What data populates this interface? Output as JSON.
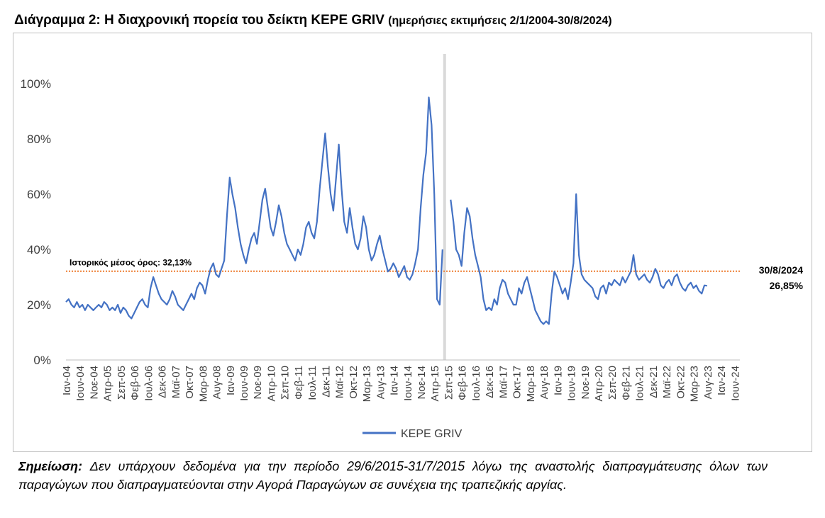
{
  "title": {
    "main": "Διάγραμμα 2: Η διαχρονική πορεία του δείκτη ΚΕΡΕ GRIV",
    "sub": "(ημερήσιες εκτιμήσεις 2/1/2004-30/8/2024)"
  },
  "note": {
    "label": "Σημείωση:",
    "text": "Δεν υπάρχουν δεδομένα για την περίοδο 29/6/2015-31/7/2015 λόγω της αναστολής διαπραγμάτευσης όλων των παραγώγων που διαπραγματεύονται στην Αγορά Παραγώγων σε συνέχεια της τραπεζικής αργίας."
  },
  "colors": {
    "series": "#4472c4",
    "mean_line": "#ed7d31",
    "gap_band": "#d9d9d9",
    "axis": "#bfbfbf"
  },
  "chart_data": {
    "type": "line",
    "title": "Η διαχρονική πορεία του δείκτη ΚΕΡΕ GRIV",
    "ylabel": "",
    "xlabel": "",
    "ylim": [
      0,
      110
    ],
    "yticks": [
      0,
      20,
      40,
      60,
      80,
      100
    ],
    "ytick_labels": [
      "0%",
      "20%",
      "40%",
      "60%",
      "80%",
      "100%"
    ],
    "x_range": [
      "2004-01-02",
      "2024-08-30"
    ],
    "xtick_labels": [
      "Ιαν-04",
      "Ιουν-04",
      "Νοε-04",
      "Απρ-05",
      "Σεπ-05",
      "Φεβ-06",
      "Ιουλ-06",
      "Δεκ-06",
      "Μαϊ-07",
      "Οκτ-07",
      "Μαρ-08",
      "Αυγ-08",
      "Ιαν-09",
      "Ιουν-09",
      "Νοε-09",
      "Απρ-10",
      "Σεπ-10",
      "Φεβ-11",
      "Ιουλ-11",
      "Δεκ-11",
      "Μαϊ-12",
      "Οκτ-12",
      "Μαρ-13",
      "Αυγ-13",
      "Ιαν-14",
      "Ιουν-14",
      "Νοε-14",
      "Απρ-15",
      "Σεπ-15",
      "Φεβ-16",
      "Ιουλ-16",
      "Δεκ-16",
      "Μαϊ-17",
      "Οκτ-17",
      "Μαρ-18",
      "Αυγ-18",
      "Ιαν-19",
      "Ιουν-19",
      "Νοε-19",
      "Απρ-20",
      "Σεπ-20",
      "Φεβ-21",
      "Ιουλ-21",
      "Δεκ-21",
      "Μαϊ-22",
      "Οκτ-22",
      "Μαρ-23",
      "Αυγ-23",
      "Ιαν-24",
      "Ιουν-24"
    ],
    "grid": false,
    "legend": "bottom-center",
    "gap_period": {
      "from_month_index": 138,
      "to_month_index": 139
    },
    "mean": {
      "value": 32.13,
      "label": "Ιστορικός μέσος όρος: 32,13%"
    },
    "last_point": {
      "date_label": "30/8/2024",
      "value_label": "26,85%",
      "value": 26.85
    },
    "series": [
      {
        "name": "ΚΕΡΕ GRIV",
        "month_index_start": 0,
        "values": [
          21,
          22,
          20,
          19,
          21,
          19,
          20,
          18,
          20,
          19,
          18,
          19,
          20,
          19,
          21,
          20,
          18,
          19,
          18,
          20,
          17,
          19,
          18,
          16,
          15,
          17,
          19,
          21,
          22,
          20,
          19,
          26,
          30,
          27,
          24,
          22,
          21,
          20,
          22,
          25,
          23,
          20,
          19,
          18,
          20,
          22,
          24,
          22,
          26,
          28,
          27,
          24,
          29,
          33,
          35,
          31,
          30,
          33,
          36,
          52,
          66,
          60,
          55,
          48,
          42,
          38,
          35,
          40,
          44,
          46,
          42,
          50,
          58,
          62,
          55,
          48,
          45,
          50,
          56,
          52,
          46,
          42,
          40,
          38,
          36,
          40,
          38,
          42,
          48,
          50,
          46,
          44,
          50,
          62,
          72,
          82,
          70,
          60,
          54,
          66,
          78,
          62,
          50,
          46,
          55,
          48,
          42,
          40,
          44,
          52,
          48,
          40,
          36,
          38,
          42,
          45,
          40,
          36,
          32,
          33,
          35,
          33,
          30,
          32,
          34,
          30,
          29,
          31,
          35,
          40,
          55,
          67,
          75,
          95,
          85,
          60,
          22,
          20,
          40,
          null,
          null,
          58,
          50,
          40,
          38,
          34,
          46,
          55,
          52,
          44,
          38,
          34,
          30,
          22,
          18,
          19,
          18,
          22,
          20,
          26,
          29,
          28,
          24,
          22,
          20,
          20,
          26,
          24,
          28,
          30,
          26,
          22,
          18,
          16,
          14,
          13,
          14,
          13,
          24,
          32,
          30,
          27,
          24,
          26,
          22,
          28,
          35,
          60,
          38,
          31,
          29,
          28,
          27,
          26,
          23,
          22,
          26,
          27,
          24,
          28,
          27,
          29,
          28,
          27,
          30,
          28,
          30,
          32,
          38,
          31,
          29,
          30,
          31,
          29,
          28,
          30,
          33,
          31,
          27,
          26,
          28,
          29,
          27,
          30,
          31,
          28,
          26,
          25,
          27,
          28,
          26,
          27,
          25,
          24,
          27,
          26.85
        ]
      }
    ]
  },
  "legend": {
    "label": "ΚΕΡΕ GRIV"
  }
}
